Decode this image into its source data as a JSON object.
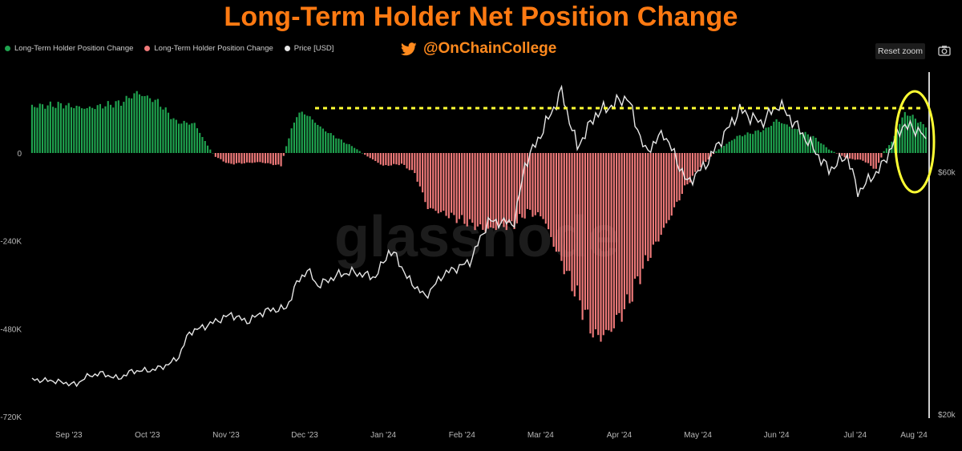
{
  "title": "Long-Term Holder Net Position Change",
  "handle": "@OnChainCollege",
  "reset_zoom_label": "Reset zoom",
  "legend": [
    {
      "label": "Long-Term Holder Position Change",
      "color": "#1fa34f"
    },
    {
      "label": "Long-Term Holder Position Change",
      "color": "#f07a7a"
    },
    {
      "label": "Price [USD]",
      "color": "#e6e6e6"
    }
  ],
  "watermark": "glassnode",
  "icons": {
    "twitter": "twitter-bird-icon",
    "camera": "camera-icon"
  },
  "colors": {
    "title": "#ff7a12",
    "positive": "#1fa34f",
    "negative": "#f07a7a",
    "price": "#e6e6e6",
    "highlight": "#ffff33"
  },
  "chart_data": {
    "type": "bar",
    "x_ticks": [
      "Sep '23",
      "Oct '23",
      "Nov '23",
      "Dec '23",
      "Jan '24",
      "Feb '24",
      "Mar '24",
      "Apr '24",
      "May '24",
      "Jun '24",
      "Jul '24",
      "Aug '24"
    ],
    "y_left_ticks": [
      "0",
      "-240K",
      "-480K",
      "-720K"
    ],
    "y_left_range": [
      -720000,
      130000
    ],
    "y_right_ticks": [
      "$60k",
      "$20k"
    ],
    "y_right_range": [
      20000,
      75000
    ],
    "annotations": [
      "yellow dotted line marking prior position-change peak level (~+115K)",
      "yellow ellipse highlighting late-July 2024 increase"
    ],
    "series": [
      {
        "name": "Long-Term Holder Position Change",
        "kind": "bar",
        "keyframes": [
          [
            "2023-08-25",
            128000
          ],
          [
            "2023-09-05",
            132000
          ],
          [
            "2023-09-15",
            122000
          ],
          [
            "2023-09-28",
            138000
          ],
          [
            "2023-10-04",
            165000
          ],
          [
            "2023-10-12",
            140000
          ],
          [
            "2023-10-19",
            85000
          ],
          [
            "2023-10-26",
            80000
          ],
          [
            "2023-10-31",
            20000
          ],
          [
            "2023-11-03",
            -10000
          ],
          [
            "2023-11-08",
            -30000
          ],
          [
            "2023-11-20",
            -25000
          ],
          [
            "2023-11-28",
            -35000
          ],
          [
            "2023-11-30",
            20000
          ],
          [
            "2023-12-04",
            105000
          ],
          [
            "2023-12-07",
            110000
          ],
          [
            "2023-12-14",
            65000
          ],
          [
            "2023-12-22",
            30000
          ],
          [
            "2023-12-26",
            15000
          ],
          [
            "2023-12-30",
            -5000
          ],
          [
            "2024-01-06",
            -35000
          ],
          [
            "2024-01-13",
            -30000
          ],
          [
            "2024-01-18",
            -55000
          ],
          [
            "2024-01-23",
            -150000
          ],
          [
            "2024-02-02",
            -175000
          ],
          [
            "2024-02-14",
            -210000
          ],
          [
            "2024-02-25",
            -195000
          ],
          [
            "2024-03-01",
            -160000
          ],
          [
            "2024-03-07",
            -175000
          ],
          [
            "2024-03-11",
            -250000
          ],
          [
            "2024-03-19",
            -375000
          ],
          [
            "2024-03-24",
            -455000
          ],
          [
            "2024-03-27",
            -505000
          ],
          [
            "2024-04-01",
            -490000
          ],
          [
            "2024-04-08",
            -415000
          ],
          [
            "2024-04-15",
            -300000
          ],
          [
            "2024-04-23",
            -195000
          ],
          [
            "2024-04-30",
            -95000
          ],
          [
            "2024-05-05",
            -45000
          ],
          [
            "2024-05-10",
            -10000
          ],
          [
            "2024-05-12",
            5000
          ],
          [
            "2024-05-20",
            45000
          ],
          [
            "2024-05-31",
            65000
          ],
          [
            "2024-06-04",
            90000
          ],
          [
            "2024-06-11",
            65000
          ],
          [
            "2024-06-18",
            45000
          ],
          [
            "2024-06-24",
            10000
          ],
          [
            "2024-07-01",
            -15000
          ],
          [
            "2024-07-07",
            -20000
          ],
          [
            "2024-07-12",
            -45000
          ],
          [
            "2024-07-15",
            5000
          ],
          [
            "2024-07-18",
            30000
          ],
          [
            "2024-07-21",
            80000
          ],
          [
            "2024-07-23",
            110000
          ],
          [
            "2024-07-27",
            95000
          ],
          [
            "2024-07-30",
            75000
          ]
        ]
      },
      {
        "name": "Price [USD]",
        "kind": "line",
        "keyframes": [
          [
            "2023-08-25",
            26100
          ],
          [
            "2023-08-29",
            25900
          ],
          [
            "2023-09-01",
            25900
          ],
          [
            "2023-09-11",
            25200
          ],
          [
            "2023-09-14",
            26400
          ],
          [
            "2023-09-20",
            27100
          ],
          [
            "2023-09-27",
            26200
          ],
          [
            "2023-10-02",
            27400
          ],
          [
            "2023-10-10",
            27600
          ],
          [
            "2023-10-16",
            28500
          ],
          [
            "2023-10-20",
            29800
          ],
          [
            "2023-10-24",
            33800
          ],
          [
            "2023-10-28",
            34400
          ],
          [
            "2023-11-09",
            36700
          ],
          [
            "2023-11-15",
            35500
          ],
          [
            "2023-11-22",
            37300
          ],
          [
            "2023-11-30",
            37700
          ],
          [
            "2023-12-04",
            41800
          ],
          [
            "2023-12-08",
            44000
          ],
          [
            "2023-12-12",
            41400
          ],
          [
            "2023-12-20",
            43200
          ],
          [
            "2023-12-25",
            43600
          ],
          [
            "2024-01-03",
            42800
          ],
          [
            "2024-01-08",
            46900
          ],
          [
            "2024-01-11",
            46200
          ],
          [
            "2024-01-15",
            42700
          ],
          [
            "2024-01-22",
            39600
          ],
          [
            "2024-01-29",
            43300
          ],
          [
            "2024-02-08",
            45300
          ],
          [
            "2024-02-15",
            51900
          ],
          [
            "2024-02-25",
            51700
          ],
          [
            "2024-02-29",
            61200
          ],
          [
            "2024-03-06",
            66100
          ],
          [
            "2024-03-14",
            73100
          ],
          [
            "2024-03-20",
            64000
          ],
          [
            "2024-03-27",
            69400
          ],
          [
            "2024-04-08",
            72300
          ],
          [
            "2024-04-15",
            63200
          ],
          [
            "2024-04-22",
            66400
          ],
          [
            "2024-05-01",
            58200
          ],
          [
            "2024-05-08",
            61200
          ],
          [
            "2024-05-15",
            66100
          ],
          [
            "2024-05-21",
            70100
          ],
          [
            "2024-05-29",
            68000
          ],
          [
            "2024-06-05",
            71100
          ],
          [
            "2024-06-12",
            67300
          ],
          [
            "2024-06-24",
            60300
          ],
          [
            "2024-07-01",
            62700
          ],
          [
            "2024-07-05",
            56700
          ],
          [
            "2024-07-14",
            60800
          ],
          [
            "2024-07-22",
            67600
          ],
          [
            "2024-07-29",
            66700
          ],
          [
            "2024-07-31",
            64600
          ]
        ]
      }
    ]
  }
}
